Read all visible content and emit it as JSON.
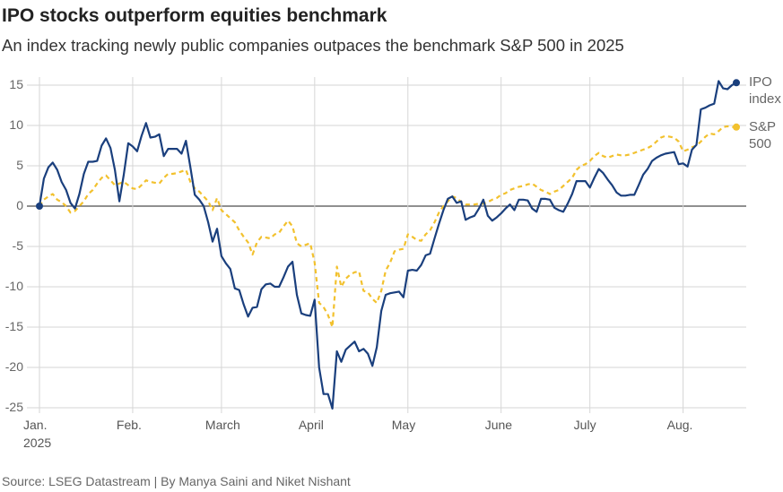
{
  "chart_data": {
    "type": "line",
    "title": "IPO stocks outperform equities benchmark",
    "subtitle": "An index tracking newly public companies outpaces the benchmark S&P 500 in 2025",
    "source": "Source: LSEG Datastream | By Manya Saini and Niket Nishant",
    "categories": [
      "Jan.\n2025",
      null,
      null,
      null,
      null,
      null,
      null,
      null,
      null,
      null,
      null,
      null,
      null,
      null,
      null,
      null,
      null,
      null,
      null,
      null,
      null,
      "Feb.",
      null,
      null,
      null,
      null,
      null,
      null,
      null,
      null,
      null,
      null,
      null,
      null,
      null,
      null,
      null,
      null,
      null,
      null,
      null,
      "March",
      null,
      null,
      null,
      null,
      null,
      null,
      null,
      null,
      null,
      null,
      null,
      null,
      null,
      null,
      null,
      null,
      null,
      null,
      null,
      null,
      "April",
      null,
      null,
      null,
      null,
      null,
      null,
      null,
      null,
      null,
      null,
      null,
      null,
      null,
      null,
      null,
      null,
      null,
      null,
      null,
      null,
      "May",
      null,
      null,
      null,
      null,
      null,
      null,
      null,
      null,
      null,
      null,
      null,
      null,
      null,
      null,
      null,
      null,
      null,
      null,
      null,
      null,
      "June",
      null,
      null,
      null,
      null,
      null,
      null,
      null,
      null,
      null,
      null,
      null,
      null,
      null,
      null,
      null,
      null,
      null,
      null,
      null,
      "July",
      null,
      null,
      null,
      null,
      null,
      null,
      null,
      null,
      null,
      null,
      null,
      null,
      null,
      null,
      null,
      null,
      null,
      null,
      null,
      null,
      "Aug.",
      null,
      null,
      null,
      null,
      null,
      null,
      null,
      null,
      null,
      null,
      null,
      null
    ],
    "series": [
      {
        "name": "IPO index",
        "color": "#1a3f7d",
        "dashed": false,
        "values": [
          0,
          3.4,
          4.8,
          5.4,
          4.5,
          3,
          2,
          0.4,
          -0.3,
          1.5,
          4,
          5.5,
          5.5,
          5.6,
          7.5,
          8.4,
          7.2,
          4.5,
          0.6,
          3.9,
          7.8,
          7.4,
          6.8,
          8.7,
          10.3,
          8.5,
          8.6,
          8.9,
          6.2,
          7.1,
          7.1,
          7.1,
          6.5,
          8.1,
          4.8,
          1.4,
          0.8,
          0,
          -2,
          -4.4,
          -2.8,
          -6.2,
          -7.1,
          -7.8,
          -10.2,
          -10.4,
          -12.2,
          -13.7,
          -12.6,
          -12.5,
          -10.3,
          -9.7,
          -9.6,
          -10,
          -10,
          -8.8,
          -7.5,
          -6.9,
          -11,
          -13.3,
          -13.5,
          -13.6,
          -11.6,
          -20,
          -23.3,
          -23.3,
          -25.1,
          -18,
          -19.3,
          -17.8,
          -17.3,
          -16.8,
          -18,
          -17.7,
          -18.3,
          -19.8,
          -17.5,
          -13,
          -11,
          -10.8,
          -10.7,
          -10.6,
          -11.3,
          -8,
          -7.9,
          -8,
          -7.3,
          -6.1,
          -5.9,
          -4,
          -2.2,
          -0.5,
          0.9,
          1.2,
          0.4,
          0.6,
          -1.7,
          -1.4,
          -1.2,
          -0.3,
          0.8,
          -1.2,
          -1.8,
          -1.4,
          -0.9,
          -0.3,
          0.2,
          -0.5,
          0.8,
          0.8,
          0.7,
          -0.3,
          -0.7,
          0.9,
          0.9,
          0.8,
          -0.2,
          -0.5,
          -0.7,
          0.3,
          1.5,
          3.1,
          3.1,
          3.1,
          2.3,
          3.5,
          4.6,
          4.1,
          3.3,
          2.6,
          1.7,
          1.3,
          1.3,
          1.4,
          1.4,
          2.6,
          3.9,
          4.6,
          5.6,
          6,
          6.3,
          6.5,
          6.6,
          6.7,
          5.2,
          5.3,
          4.9,
          7,
          7.6,
          12,
          12.2,
          12.5,
          12.7,
          15.5,
          14.6,
          14.5,
          15,
          15.3
        ]
      },
      {
        "name": "S&P 500",
        "color": "#f2c12e",
        "dashed": true,
        "values": [
          0,
          0.8,
          1.2,
          1.5,
          0.8,
          0.5,
          0,
          -0.8,
          -0.6,
          0,
          0.6,
          1.5,
          2,
          2.8,
          3.5,
          3.8,
          3.2,
          2.6,
          2.8,
          3,
          2.6,
          2.2,
          2.1,
          2.6,
          3.2,
          3,
          2.9,
          2.8,
          3.5,
          4,
          4,
          4.1,
          4.3,
          4.5,
          3,
          2.2,
          1.8,
          1.2,
          0.6,
          -0.5,
          1,
          -0.5,
          -1,
          -1.5,
          -2,
          -3,
          -3.8,
          -4.5,
          -6,
          -4.5,
          -3.8,
          -3.9,
          -4,
          -3.5,
          -3.3,
          -2.5,
          -1.8,
          -2.5,
          -4.6,
          -5,
          -4.8,
          -4.6,
          -7,
          -12,
          -12.5,
          -13.5,
          -15,
          -7.5,
          -10,
          -9,
          -8.5,
          -8.2,
          -8.1,
          -10.5,
          -10.7,
          -11.5,
          -12,
          -10.5,
          -8,
          -7,
          -5.6,
          -5.4,
          -5.3,
          -3.5,
          -3.8,
          -4.2,
          -4.3,
          -3.5,
          -3,
          -2,
          -0.8,
          0,
          0.6,
          1.2,
          1,
          0.5,
          0.2,
          0.2,
          0.2,
          0.3,
          0.3,
          0.5,
          0.8,
          1,
          1.4,
          1.6,
          2,
          2.2,
          2.4,
          2.5,
          2.7,
          2.8,
          2.4,
          2,
          1.8,
          1.5,
          1.8,
          2,
          2.5,
          3,
          3.5,
          4.5,
          5,
          5.2,
          5.6,
          6.2,
          6.6,
          6.2,
          6,
          6.2,
          6.4,
          6.3,
          6.3,
          6.4,
          6.6,
          6.8,
          7,
          7.2,
          7.5,
          8,
          8.5,
          8.7,
          8.6,
          8.5,
          8,
          6.8,
          7,
          7.3,
          7.5,
          8,
          8.6,
          9,
          8.9,
          9.3,
          9.8,
          9.9,
          9.8,
          9.8
        ]
      }
    ],
    "ylim": [
      -25,
      16
    ],
    "yticks": [
      -25,
      -20,
      -15,
      -10,
      -5,
      0,
      5,
      10,
      15
    ],
    "grid": true
  }
}
